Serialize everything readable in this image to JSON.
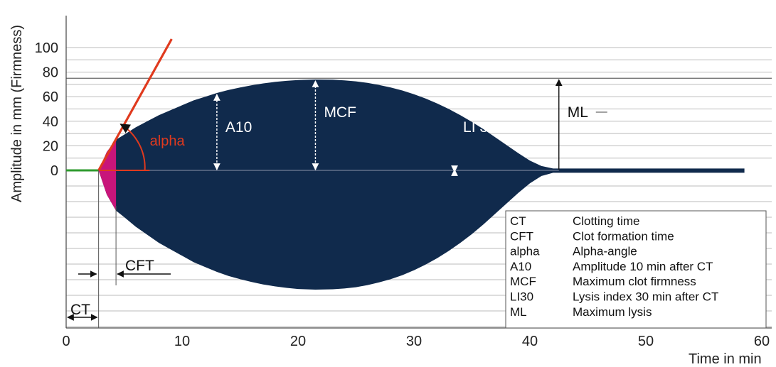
{
  "chart_data": {
    "type": "area",
    "xlabel": "Time in min",
    "ylabel": "Amplitude in mm (Firmness)",
    "xlim": [
      0,
      60
    ],
    "ylim": [
      0,
      100
    ],
    "x_ticks": [
      "0",
      "10",
      "20",
      "30",
      "40",
      "50",
      "60"
    ],
    "y_ticks": [
      "0",
      "20",
      "40",
      "60",
      "80",
      "100"
    ],
    "grid": true,
    "series": [
      {
        "x": [
          0,
          2.8,
          3.5,
          4.3,
          5,
          6,
          7,
          8,
          9,
          10,
          11,
          12,
          13,
          14,
          15,
          16,
          17,
          18,
          19,
          20,
          21.5,
          23,
          24,
          25,
          26,
          27,
          28,
          29,
          30,
          31,
          32,
          33,
          34,
          35,
          36,
          37,
          38,
          39,
          40,
          41,
          42,
          42.5,
          58.5
        ],
        "values": [
          0,
          0,
          15,
          25,
          29,
          35,
          40,
          45,
          49,
          53,
          57,
          60,
          63,
          65.5,
          67.5,
          69.3,
          70.8,
          72,
          72.9,
          73.6,
          74,
          73.8,
          73.3,
          72.5,
          71.2,
          69.5,
          67.5,
          65,
          62,
          58.5,
          54.5,
          50,
          45,
          39.5,
          33.5,
          27,
          20.5,
          14,
          8,
          3.5,
          1.5,
          1.5,
          1.5
        ]
      }
    ],
    "clot_formation_area": {
      "x_start": 2.8,
      "x_end": 4.3
    },
    "mcf_level": 75,
    "markers": [
      {
        "label": "A10",
        "x": 13
      },
      {
        "label": "MCF",
        "x": 21.5
      },
      {
        "label": "LI 30",
        "x": 33.5
      },
      {
        "label": "ML",
        "x": 42.5
      }
    ],
    "annotations": {
      "alpha": "alpha",
      "ct": "CT",
      "cft": "CFT",
      "ct_x": 2.8,
      "cft_x": 4.3
    },
    "legend": [
      {
        "abbr": "CT",
        "desc": "Clotting time"
      },
      {
        "abbr": "CFT",
        "desc": "Clot formation time"
      },
      {
        "abbr": "alpha",
        "desc": "Alpha-angle"
      },
      {
        "abbr": "A10",
        "desc": "Amplitude 10 min after CT"
      },
      {
        "abbr": "MCF",
        "desc": "Maximum clot firmness"
      },
      {
        "abbr": "LI30",
        "desc": "Lysis index 30 min after CT"
      },
      {
        "abbr": "ML",
        "desc": "Maximum lysis"
      }
    ],
    "colors": {
      "body": "#102a4c",
      "cft_fill": "#c8157a",
      "baseline": "#2e9a2e",
      "alpha": "#e03a1e",
      "grid": "#bbbbbb"
    }
  }
}
